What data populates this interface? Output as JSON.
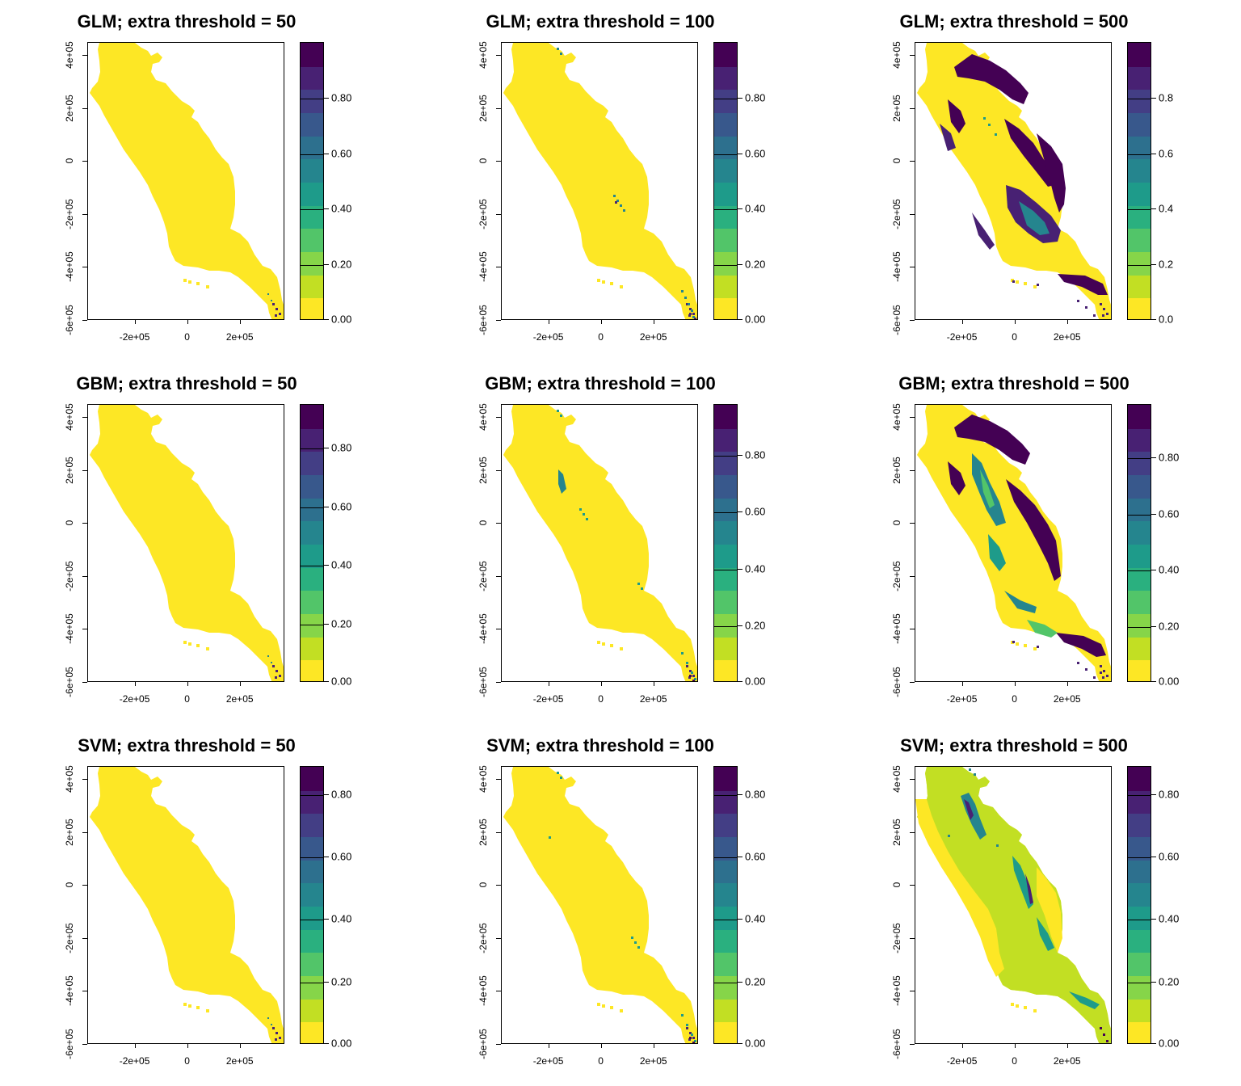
{
  "panels": [
    {
      "title": "GLM; extra threshold = 50",
      "model": "GLM",
      "threshold": 50,
      "max_level": 1.0,
      "legend_ticks": [
        "0.00",
        "0.20",
        "0.40",
        "0.60",
        "0.80"
      ],
      "legend_tick_values": [
        0,
        0.2,
        0.4,
        0.6,
        0.8
      ],
      "pattern": "low"
    },
    {
      "title": "GLM; extra threshold = 100",
      "model": "GLM",
      "threshold": 100,
      "max_level": 1.0,
      "legend_ticks": [
        "0.00",
        "0.20",
        "0.40",
        "0.60",
        "0.80"
      ],
      "legend_tick_values": [
        0,
        0.2,
        0.4,
        0.6,
        0.8
      ],
      "pattern": "mid"
    },
    {
      "title": "GLM; extra threshold = 500",
      "model": "GLM",
      "threshold": 500,
      "max_level": 1.0,
      "legend_ticks": [
        "0.0",
        "0.2",
        "0.4",
        "0.6",
        "0.8"
      ],
      "legend_tick_values": [
        0,
        0.2,
        0.4,
        0.6,
        0.8
      ],
      "pattern": "glm500"
    },
    {
      "title": "GBM; extra threshold = 50",
      "model": "GBM",
      "threshold": 50,
      "max_level": 0.95,
      "legend_ticks": [
        "0.00",
        "0.20",
        "0.40",
        "0.60",
        "0.80"
      ],
      "legend_tick_values": [
        0,
        0.2,
        0.4,
        0.6,
        0.8
      ],
      "pattern": "low"
    },
    {
      "title": "GBM; extra threshold = 100",
      "model": "GBM",
      "threshold": 100,
      "max_level": 0.98,
      "legend_ticks": [
        "0.00",
        "0.20",
        "0.40",
        "0.60",
        "0.80"
      ],
      "legend_tick_values": [
        0,
        0.2,
        0.4,
        0.6,
        0.8
      ],
      "pattern": "gbm100"
    },
    {
      "title": "GBM; extra threshold = 500",
      "model": "GBM",
      "threshold": 500,
      "max_level": 0.99,
      "legend_ticks": [
        "0.00",
        "0.20",
        "0.40",
        "0.60",
        "0.80"
      ],
      "legend_tick_values": [
        0,
        0.2,
        0.4,
        0.6,
        0.8
      ],
      "pattern": "gbm500"
    },
    {
      "title": "SVM; extra threshold = 50",
      "model": "SVM",
      "threshold": 50,
      "max_level": 0.89,
      "legend_ticks": [
        "0.00",
        "0.20",
        "0.40",
        "0.60",
        "0.80"
      ],
      "legend_tick_values": [
        0,
        0.2,
        0.4,
        0.6,
        0.8
      ],
      "pattern": "low"
    },
    {
      "title": "SVM; extra threshold = 100",
      "model": "SVM",
      "threshold": 100,
      "max_level": 0.89,
      "legend_ticks": [
        "0.00",
        "0.20",
        "0.40",
        "0.60",
        "0.80"
      ],
      "legend_tick_values": [
        0,
        0.2,
        0.4,
        0.6,
        0.8
      ],
      "pattern": "svm100"
    },
    {
      "title": "SVM; extra threshold = 500",
      "model": "SVM",
      "threshold": 500,
      "max_level": 0.89,
      "legend_ticks": [
        "0.00",
        "0.20",
        "0.40",
        "0.60",
        "0.80"
      ],
      "legend_tick_values": [
        0,
        0.2,
        0.4,
        0.6,
        0.8
      ],
      "pattern": "svm500"
    }
  ],
  "x_axis": {
    "ticks": [
      "-2e+05",
      "0",
      "2e+05"
    ],
    "tick_values": [
      -200000,
      0,
      200000
    ],
    "range": [
      -380000,
      370000
    ]
  },
  "y_axis": {
    "ticks": [
      "-6e+05",
      "-4e+05",
      "-2e+05",
      "0",
      "2e+05",
      "4e+05"
    ],
    "tick_values": [
      -600000,
      -400000,
      -200000,
      0,
      200000,
      400000
    ],
    "range": [
      -600000,
      450000
    ]
  },
  "colors": {
    "viridis_bins": [
      "#FDE725",
      "#C2DF23",
      "#86D549",
      "#52C569",
      "#2AB07F",
      "#1E9B8A",
      "#25858E",
      "#2D708E",
      "#38588C",
      "#433E85",
      "#482173",
      "#440154"
    ],
    "land_low": "#FDE725",
    "high": "#440154"
  }
}
